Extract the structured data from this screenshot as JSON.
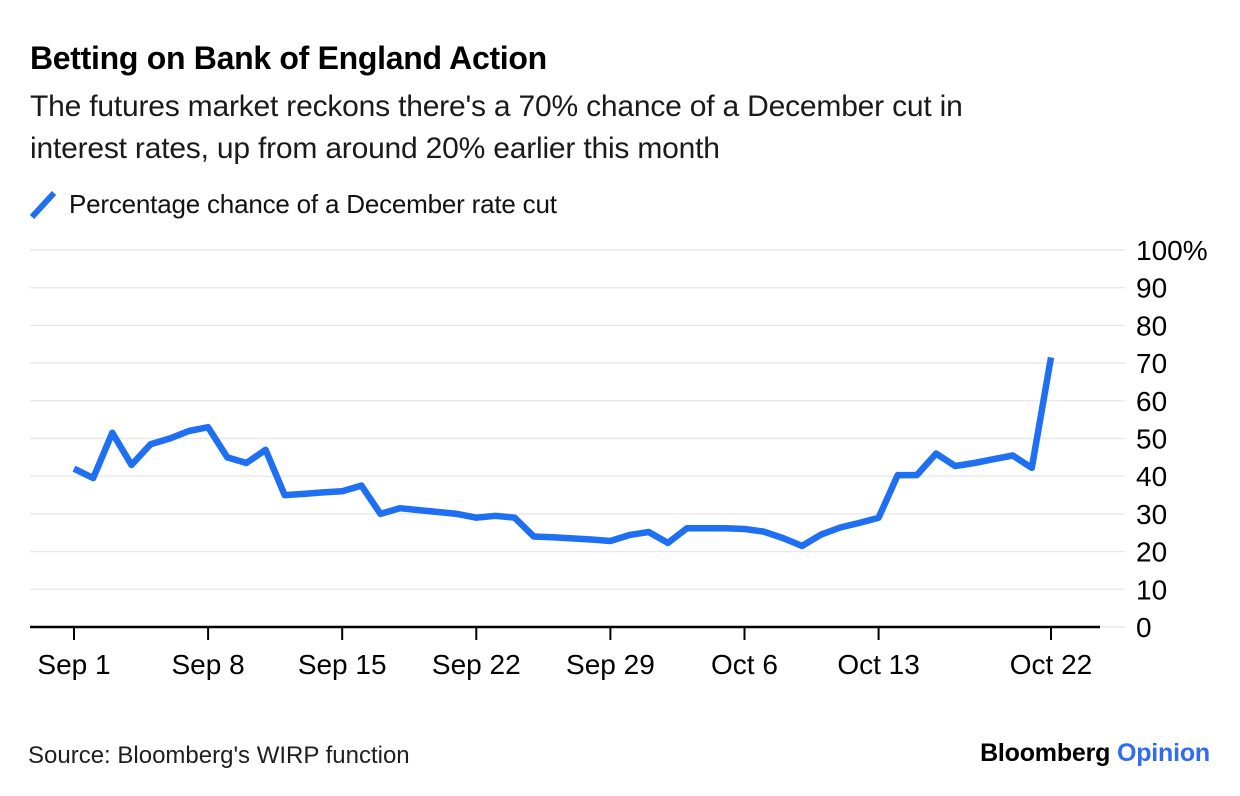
{
  "header": {
    "title": "Betting on Bank of England Action",
    "subtitle_line1": "The futures market reckons there's a 70% chance of a December cut in",
    "subtitle_line2": "interest rates, up from around 20% earlier this month"
  },
  "legend": {
    "label": "Percentage chance of a December rate cut"
  },
  "footer": {
    "source": "Source: Bloomberg's WIRP function",
    "brand": "Bloomberg",
    "brand_suffix": "Opinion"
  },
  "colors": {
    "line": "#1f6ff2",
    "brand_blue": "#2f6bf3",
    "grid": "#e8e8e8",
    "axis": "#000000",
    "text": "#1a1a1a"
  },
  "chart_data": {
    "type": "line",
    "title": "Betting on Bank of England Action",
    "subtitle": "The futures market reckons there's a 70% chance of a December cut in interest rates, up from around 20% earlier this month",
    "xlabel": "",
    "ylabel": "",
    "ylim": [
      0,
      100
    ],
    "grid": "horizontal",
    "legend_position": "top-left",
    "y_axis_side": "right",
    "y_ticks": [
      0,
      10,
      20,
      30,
      40,
      50,
      60,
      70,
      80,
      90,
      100
    ],
    "y_tick_labels": [
      "0",
      "10",
      "20",
      "30",
      "40",
      "50",
      "60",
      "70",
      "80",
      "90",
      "100%"
    ],
    "x_tick_labels": [
      "Sep 1",
      "Sep 8",
      "Sep 15",
      "Sep 22",
      "Sep 29",
      "Oct 6",
      "Oct 13",
      "Oct 22"
    ],
    "x_tick_indices": [
      0,
      7,
      14,
      21,
      28,
      35,
      42,
      51
    ],
    "x": [
      "Sep 1",
      "Sep 2",
      "Sep 3",
      "Sep 4",
      "Sep 5",
      "Sep 6",
      "Sep 7",
      "Sep 8",
      "Sep 9",
      "Sep 10",
      "Sep 11",
      "Sep 12",
      "Sep 13",
      "Sep 14",
      "Sep 15",
      "Sep 16",
      "Sep 17",
      "Sep 18",
      "Sep 19",
      "Sep 20",
      "Sep 21",
      "Sep 22",
      "Sep 23",
      "Sep 24",
      "Sep 25",
      "Sep 26",
      "Sep 27",
      "Sep 28",
      "Sep 29",
      "Sep 30",
      "Oct 1",
      "Oct 2",
      "Oct 3",
      "Oct 4",
      "Oct 5",
      "Oct 6",
      "Oct 7",
      "Oct 8",
      "Oct 9",
      "Oct 10",
      "Oct 11",
      "Oct 12",
      "Oct 13",
      "Oct 14",
      "Oct 15",
      "Oct 16",
      "Oct 17",
      "Oct 18",
      "Oct 19",
      "Oct 20",
      "Oct 21",
      "Oct 22"
    ],
    "series": [
      {
        "name": "Percentage chance of a December rate cut",
        "values": [
          42,
          39.5,
          51.5,
          43,
          48.5,
          50,
          52,
          53,
          45,
          43.5,
          47,
          35,
          35.3,
          35.7,
          36,
          37.5,
          30,
          31.5,
          31,
          30.5,
          30,
          29,
          29.5,
          29,
          24,
          23.8,
          23.5,
          23.2,
          22.8,
          24.4,
          25.2,
          22.3,
          26.2,
          26.2,
          26.2,
          26,
          25.3,
          23.6,
          21.5,
          24.5,
          26.4,
          27.6,
          29,
          40.3,
          40.3,
          46,
          42.7,
          43.5,
          44.5,
          45.5,
          42.2,
          71.5
        ]
      }
    ]
  }
}
